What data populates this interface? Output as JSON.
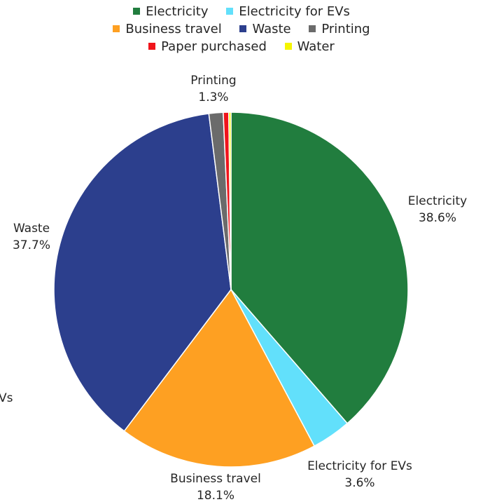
{
  "chart_data": {
    "type": "pie",
    "legend": "top",
    "series": [
      {
        "name": "Electricity",
        "value": 38.6,
        "label": "38.6%",
        "color": "#217d3e"
      },
      {
        "name": "Electricity for EVs",
        "value": 3.6,
        "label": "3.6%",
        "color": "#62e0fb"
      },
      {
        "name": "Business travel",
        "value": 18.1,
        "label": "18.1%",
        "color": "#fea022"
      },
      {
        "name": "Waste",
        "value": 37.7,
        "label": "37.7%",
        "color": "#2c3f8d"
      },
      {
        "name": "Printing",
        "value": 1.3,
        "label": "1.3%",
        "color": "#6b6b6b"
      },
      {
        "name": "Paper purchased",
        "value": 0.5,
        "label": "",
        "color": "#f0141b"
      },
      {
        "name": "Water",
        "value": 0.2,
        "label": "",
        "color": "#f5f500"
      }
    ],
    "clipped_label": "Vs"
  }
}
